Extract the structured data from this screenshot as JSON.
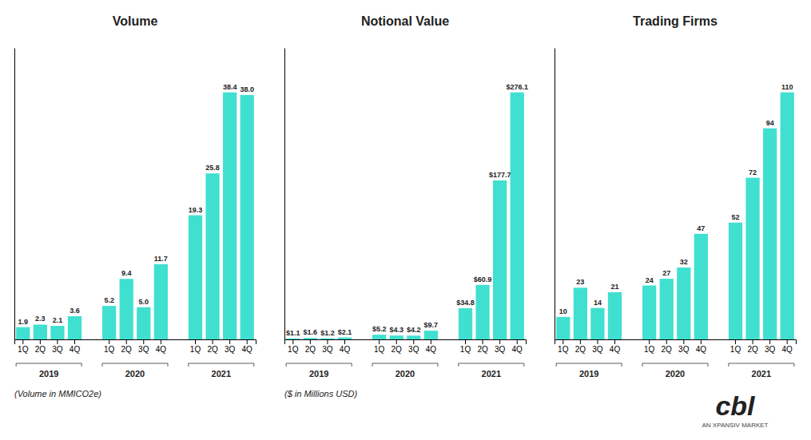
{
  "chart_data": [
    {
      "type": "bar",
      "title": "Volume",
      "subtitle": "(Volume in MMICO2e)",
      "categories": [
        "1Q",
        "2Q",
        "3Q",
        "4Q",
        "1Q",
        "2Q",
        "3Q",
        "4Q",
        "1Q",
        "2Q",
        "3Q",
        "4Q"
      ],
      "annotations": [
        "2019",
        "2020",
        "2021"
      ],
      "values": [
        1.9,
        2.3,
        2.1,
        3.6,
        5.2,
        9.4,
        5.0,
        11.7,
        19.3,
        25.8,
        38.4,
        38.0
      ],
      "value_labels": [
        "1.9",
        "2.3",
        "2.1",
        "3.6",
        "5.2",
        "9.4",
        "5.0",
        "11.7",
        "19.3",
        "25.8",
        "38.4",
        "38.0"
      ],
      "color": "#40e0d0",
      "ylim": [
        0,
        45.312
      ],
      "grid": false,
      "data_labels": true,
      "tick_labels": "x"
    },
    {
      "type": "bar",
      "title": "Notional Value",
      "subtitle": "($ in Millions USD)",
      "categories": [
        "1Q",
        "2Q",
        "3Q",
        "4Q",
        "1Q",
        "2Q",
        "3Q",
        "4Q",
        "1Q",
        "2Q",
        "3Q",
        "4Q"
      ],
      "annotations": [
        "2019",
        "2020",
        "2021"
      ],
      "values": [
        1.1,
        1.6,
        1.2,
        2.1,
        5.2,
        4.3,
        4.2,
        9.7,
        34.8,
        60.9,
        177.7,
        276.1
      ],
      "value_labels": [
        "$1.1",
        "$1.6",
        "$1.2",
        "$2.1",
        "$5.2",
        "$4.3",
        "$4.2",
        "$9.7",
        "$34.8",
        "$60.9",
        "$177.7",
        "$276.1"
      ],
      "color": "#40e0d0",
      "ylim": [
        0,
        325.798
      ],
      "grid": false,
      "data_labels": true,
      "tick_labels": "x"
    },
    {
      "type": "bar",
      "title": "Trading Firms",
      "categories": [
        "1Q",
        "2Q",
        "3Q",
        "4Q",
        "1Q",
        "2Q",
        "3Q",
        "4Q",
        "1Q",
        "2Q",
        "3Q",
        "4Q"
      ],
      "annotations": [
        "2019",
        "2020",
        "2021"
      ],
      "values": [
        10,
        23,
        14,
        21,
        24,
        27,
        32,
        47,
        52,
        72,
        94,
        110
      ],
      "color": "#40e0d0",
      "ylim": [
        0,
        129.8
      ],
      "grid": false,
      "data_labels": true,
      "tick_labels": "x"
    }
  ],
  "annotations": [
    "cbl",
    "AN XPANSIV MARKET"
  ]
}
